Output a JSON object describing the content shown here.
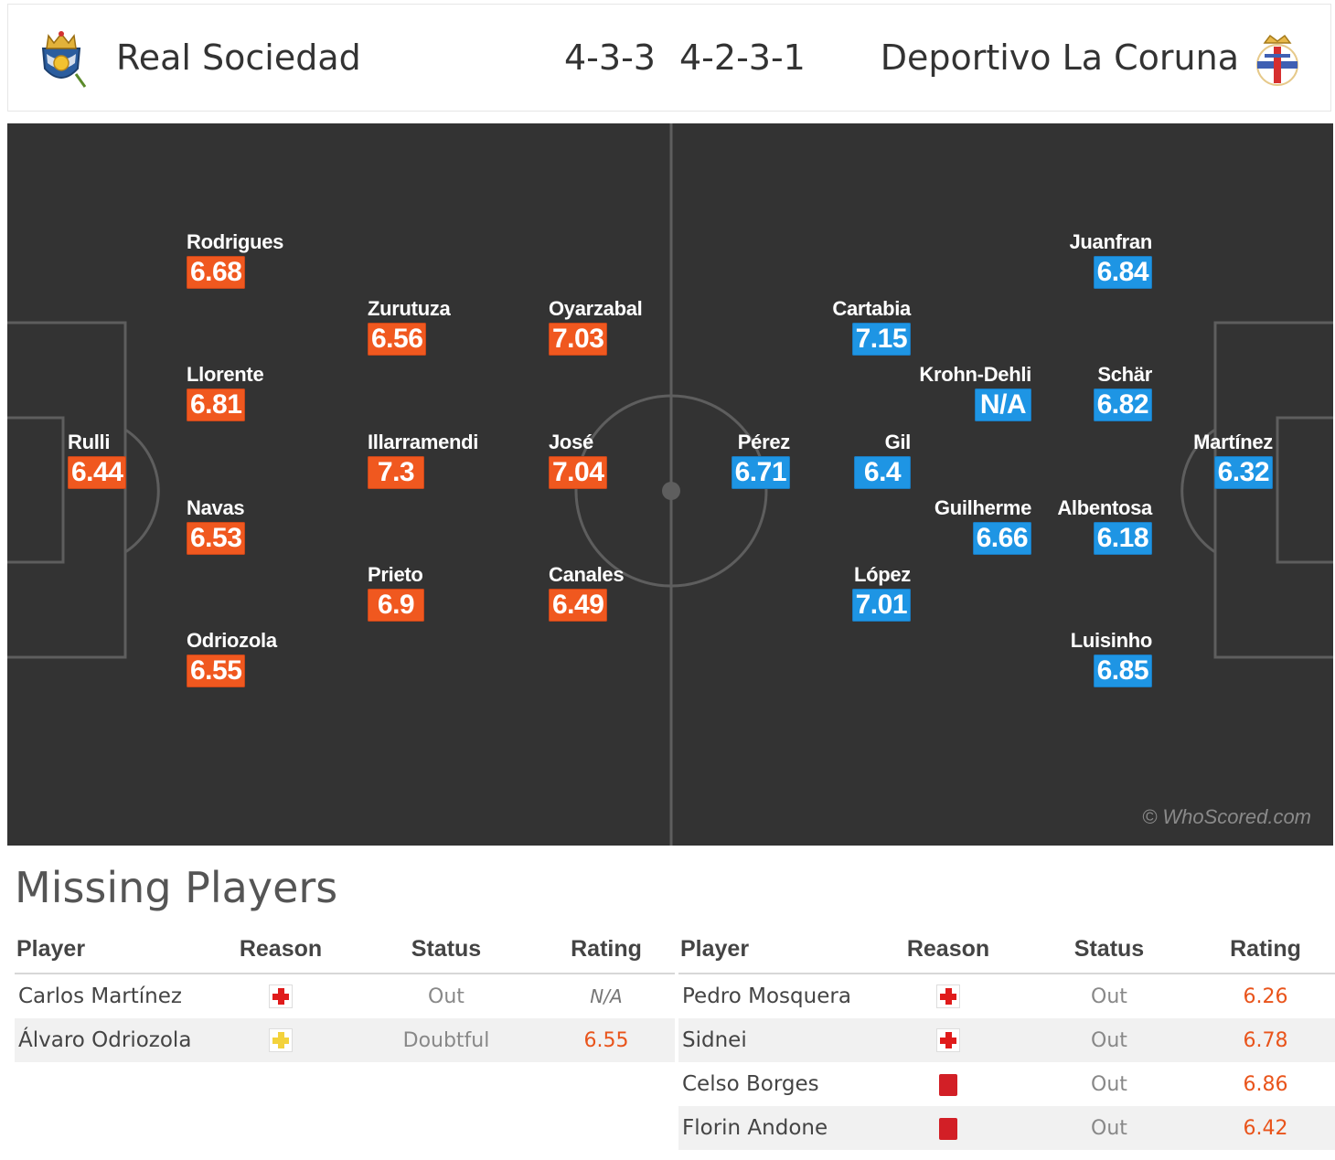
{
  "header": {
    "home_team": "Real Sociedad",
    "home_formation": "4-3-3",
    "away_formation": "4-2-3-1",
    "away_team": "Deportivo La Coruna"
  },
  "colors": {
    "home_rating": "#f0581f",
    "away_rating": "#1e95e4",
    "pitch": "#333333"
  },
  "pitch": {
    "watermark": "© WhoScored.com",
    "home_players": [
      {
        "name": "Rulli",
        "rating": "6.44"
      },
      {
        "name": "Rodrigues",
        "rating": "6.68"
      },
      {
        "name": "Llorente",
        "rating": "6.81"
      },
      {
        "name": "Navas",
        "rating": "6.53"
      },
      {
        "name": "Odriozola",
        "rating": "6.55"
      },
      {
        "name": "Zurutuza",
        "rating": "6.56"
      },
      {
        "name": "Illarramendi",
        "rating": "7.3"
      },
      {
        "name": "Prieto",
        "rating": "6.9"
      },
      {
        "name": "Oyarzabal",
        "rating": "7.03"
      },
      {
        "name": "José",
        "rating": "7.04"
      },
      {
        "name": "Canales",
        "rating": "6.49"
      }
    ],
    "away_players": [
      {
        "name": "Martínez",
        "rating": "6.32"
      },
      {
        "name": "Juanfran",
        "rating": "6.84"
      },
      {
        "name": "Schär",
        "rating": "6.82"
      },
      {
        "name": "Albentosa",
        "rating": "6.18"
      },
      {
        "name": "Luisinho",
        "rating": "6.85"
      },
      {
        "name": "Krohn-Dehli",
        "rating": "N/A"
      },
      {
        "name": "Guilherme",
        "rating": "6.66"
      },
      {
        "name": "Cartabia",
        "rating": "7.15"
      },
      {
        "name": "Gil",
        "rating": "6.4"
      },
      {
        "name": "López",
        "rating": "7.01"
      },
      {
        "name": "Pérez",
        "rating": "6.71"
      }
    ]
  },
  "missing": {
    "title": "Missing Players",
    "columns": [
      "Player",
      "Reason",
      "Status",
      "Rating"
    ],
    "home": [
      {
        "player": "Carlos Martínez",
        "reason_icon": "injury-icon",
        "status": "Out",
        "rating": "N/A"
      },
      {
        "player": "Álvaro Odriozola",
        "reason_icon": "doubtful-icon",
        "status": "Doubtful",
        "rating": "6.55"
      }
    ],
    "away": [
      {
        "player": "Pedro Mosquera",
        "reason_icon": "injury-icon",
        "status": "Out",
        "rating": "6.26"
      },
      {
        "player": "Sidnei",
        "reason_icon": "injury-icon",
        "status": "Out",
        "rating": "6.78"
      },
      {
        "player": "Celso Borges",
        "reason_icon": "red-card-icon",
        "status": "Out",
        "rating": "6.86"
      },
      {
        "player": "Florin Andone",
        "reason_icon": "red-card-icon",
        "status": "Out",
        "rating": "6.42"
      }
    ]
  }
}
